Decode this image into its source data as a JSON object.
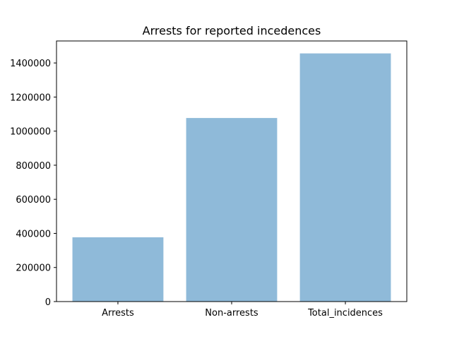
{
  "chart_data": {
    "type": "bar",
    "title": "Arrests for reported incedences",
    "xlabel": "",
    "ylabel": "",
    "categories": [
      "Arrests",
      "Non-arrests",
      "Total_incidences"
    ],
    "values": [
      377000,
      1077000,
      1456000
    ],
    "ylim": [
      0,
      1529000
    ],
    "yticks": [
      0,
      200000,
      400000,
      600000,
      800000,
      1000000,
      1200000,
      1400000
    ],
    "grid": false,
    "legend": false,
    "bar_color": "#8fbad9"
  }
}
